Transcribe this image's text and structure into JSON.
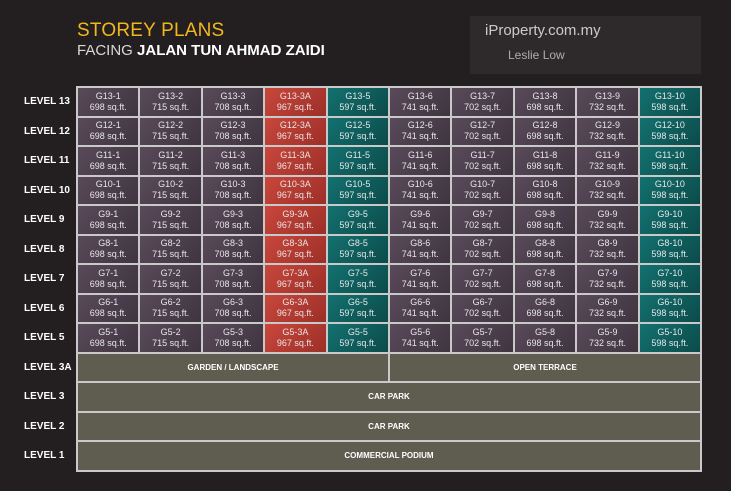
{
  "title": "STOREY PLANS",
  "subtitle_prefix": "FACING",
  "subtitle_road": "JALAN TUN AHMAD ZAIDI",
  "levels": [
    "LEVEL 13",
    "LEVEL 12",
    "LEVEL 11",
    "LEVEL 10",
    "LEVEL 9",
    "LEVEL 8",
    "LEVEL 7",
    "LEVEL 6",
    "LEVEL 5",
    "LEVEL 3A",
    "LEVEL 3",
    "LEVEL 2",
    "LEVEL 1"
  ],
  "unit_floors": [
    13,
    12,
    11,
    10,
    9,
    8,
    7,
    6,
    5
  ],
  "unit_columns": [
    {
      "suffix": "1",
      "size": "698 sq.ft.",
      "type": "standard"
    },
    {
      "suffix": "2",
      "size": "715 sq.ft.",
      "type": "standard"
    },
    {
      "suffix": "3",
      "size": "708 sq.ft.",
      "type": "standard"
    },
    {
      "suffix": "3A",
      "size": "967 sq.ft.",
      "type": "red"
    },
    {
      "suffix": "5",
      "size": "597 sq.ft.",
      "type": "teal"
    },
    {
      "suffix": "6",
      "size": "741 sq.ft.",
      "type": "standard"
    },
    {
      "suffix": "7",
      "size": "702 sq.ft.",
      "type": "standard"
    },
    {
      "suffix": "8",
      "size": "698 sq.ft.",
      "type": "standard"
    },
    {
      "suffix": "9",
      "size": "732 sq.ft.",
      "type": "standard"
    },
    {
      "suffix": "10",
      "size": "598 sq.ft.",
      "type": "teal"
    }
  ],
  "level_3a": [
    "GARDEN / LANDSCAPE",
    "OPEN TERRACE"
  ],
  "level_3": "CAR PARK",
  "level_2": "CAR PARK",
  "level_1": "COMMERCIAL PODIUM",
  "watermark": {
    "site": "iProperty.com.my",
    "agent": "Leslie Low"
  },
  "colors": {
    "title": "#f2b71c",
    "red": "#b23c33",
    "teal": "#0f5f5e",
    "podium": "#5e5d50"
  }
}
